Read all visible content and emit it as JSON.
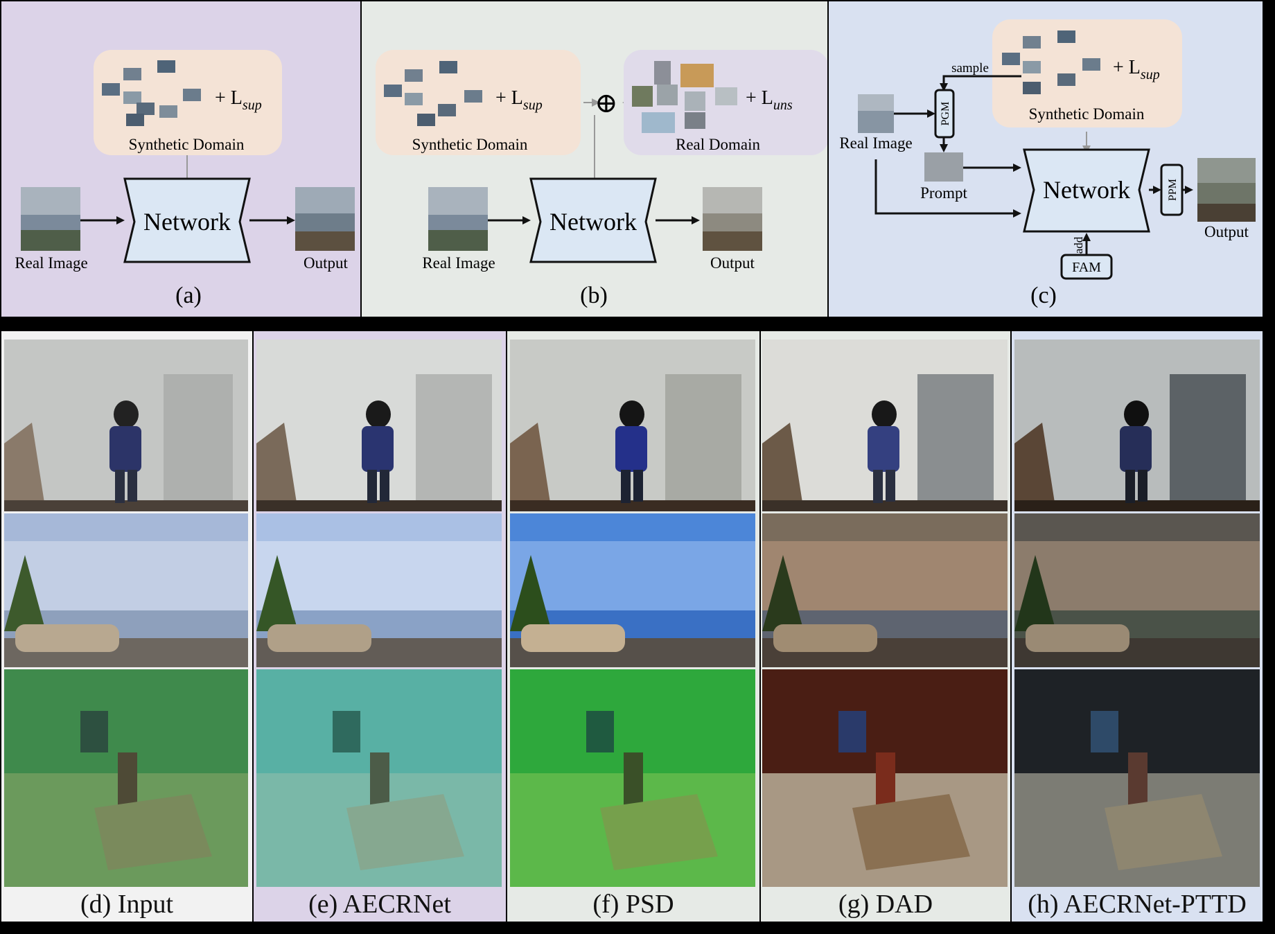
{
  "colors": {
    "panel_a": "#dcd3e8",
    "panel_b": "#e6eae6",
    "panel_c": "#d9e1f1",
    "synthetic_box": "#f4e3d6",
    "real_box": "#e0dbea",
    "network_fill": "#dbe7f4"
  },
  "diagram_a": {
    "synthetic_label": "Synthetic Domain",
    "loss_label": "+ L",
    "loss_sub": "sup",
    "network_label": "Network",
    "input_label": "Real Image",
    "output_label": "Output",
    "caption": "(a)"
  },
  "diagram_b": {
    "synthetic_label": "Synthetic Domain",
    "loss_sup": "+ L",
    "loss_sup_sub": "sup",
    "plus_symbol": "⊕",
    "real_label": "Real Domain",
    "loss_uns": "+ L",
    "loss_uns_sub": "uns",
    "network_label": "Network",
    "input_label": "Real Image",
    "output_label": "Output",
    "caption": "(b)"
  },
  "diagram_c": {
    "sample_label": "sample",
    "synthetic_label": "Synthetic Domain",
    "loss_label": "+ L",
    "loss_sub": "sup",
    "input_label": "Real Image",
    "pgm_label": "PGM",
    "prompt_label": "Prompt",
    "network_label": "Network",
    "ppm_label": "PPM",
    "output_label": "Output",
    "add_label": "add",
    "fam_label": "FAM",
    "caption": "(c)"
  },
  "comparison": {
    "columns": [
      {
        "caption": "(d) Input"
      },
      {
        "caption": "(e) AECRNet"
      },
      {
        "caption": "(f) PSD"
      },
      {
        "caption": "(g) DAD"
      },
      {
        "caption": "(h) AECRNet-PTTD"
      }
    ],
    "rows": [
      "hazy-street-woman",
      "city-skyline-car",
      "underwater-diver-statue"
    ]
  }
}
